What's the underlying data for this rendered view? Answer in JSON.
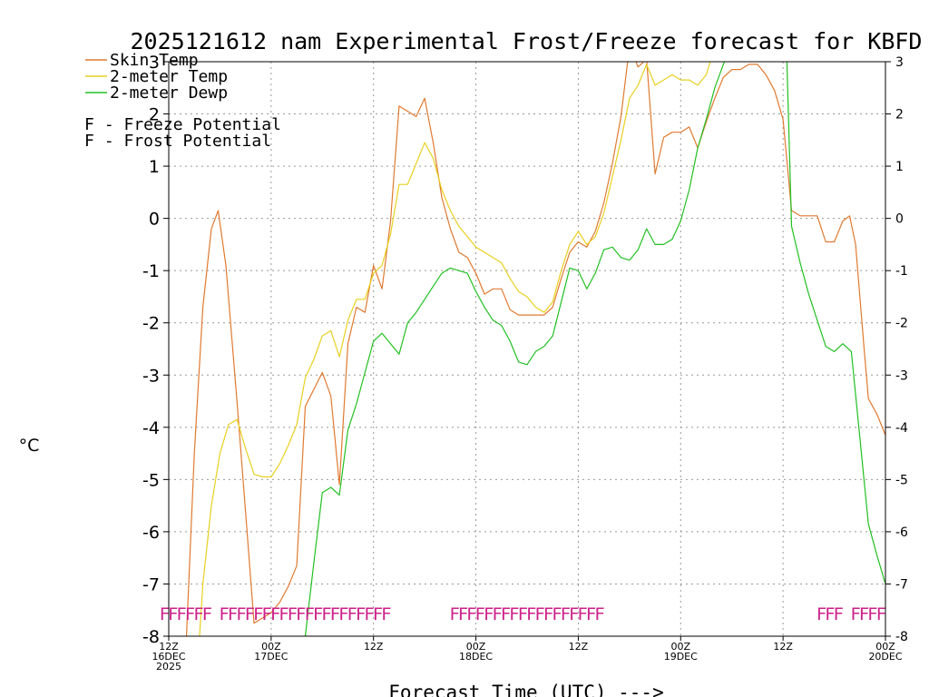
{
  "chart_data": {
    "type": "line",
    "title": "2025121612 nam Experimental Frost/Freeze forecast for KBFD",
    "ylabel": "°C",
    "xlabel": "Forecast Time (UTC) --->",
    "ylim": [
      -8,
      3
    ],
    "xlim": [
      0,
      84
    ],
    "yticks": [
      -8,
      -7,
      -6,
      -5,
      -4,
      -3,
      -2,
      -1,
      0,
      1,
      2,
      3
    ],
    "xticks": [
      {
        "x": 0,
        "lines": [
          "12Z",
          "16DEC",
          "2025"
        ]
      },
      {
        "x": 12,
        "lines": [
          "00Z",
          "17DEC"
        ]
      },
      {
        "x": 24,
        "lines": [
          "12Z"
        ]
      },
      {
        "x": 36,
        "lines": [
          "00Z",
          "18DEC"
        ]
      },
      {
        "x": 48,
        "lines": [
          "12Z"
        ]
      },
      {
        "x": 60,
        "lines": [
          "00Z",
          "19DEC"
        ]
      },
      {
        "x": 72,
        "lines": [
          "12Z"
        ]
      },
      {
        "x": 84,
        "lines": [
          "00Z",
          "20DEC"
        ]
      }
    ],
    "grid": true,
    "series": [
      {
        "name": "Skin Temp",
        "color": "#e07a30",
        "points": [
          [
            2,
            -8.3
          ],
          [
            3,
            -4.5
          ],
          [
            4,
            -1.7
          ],
          [
            5,
            -0.2
          ],
          [
            5.8,
            0.15
          ],
          [
            6.7,
            -0.9
          ],
          [
            8,
            -3.5
          ],
          [
            9,
            -5.6
          ],
          [
            10,
            -7.75
          ],
          [
            11,
            -7.65
          ],
          [
            12,
            -7.55
          ],
          [
            13,
            -7.35
          ],
          [
            14,
            -7.05
          ],
          [
            15,
            -6.65
          ],
          [
            16,
            -3.6
          ],
          [
            18,
            -2.95
          ],
          [
            19,
            -3.4
          ],
          [
            20,
            -5.1
          ],
          [
            21,
            -2.4
          ],
          [
            22,
            -1.7
          ],
          [
            23,
            -1.8
          ],
          [
            24,
            -0.9
          ],
          [
            25,
            -1.35
          ],
          [
            26,
            -0.05
          ],
          [
            27,
            2.15
          ],
          [
            29,
            1.95
          ],
          [
            30,
            2.3
          ],
          [
            31,
            1.45
          ],
          [
            32,
            0.4
          ],
          [
            33,
            -0.2
          ],
          [
            34,
            -0.65
          ],
          [
            35,
            -0.75
          ],
          [
            36,
            -1.05
          ],
          [
            37,
            -1.45
          ],
          [
            38,
            -1.35
          ],
          [
            39,
            -1.35
          ],
          [
            40,
            -1.75
          ],
          [
            41,
            -1.85
          ],
          [
            42,
            -1.85
          ],
          [
            43,
            -1.85
          ],
          [
            44,
            -1.85
          ],
          [
            45,
            -1.7
          ],
          [
            46,
            -1.15
          ],
          [
            47,
            -0.65
          ],
          [
            48,
            -0.45
          ],
          [
            49,
            -0.55
          ],
          [
            50,
            -0.25
          ],
          [
            51,
            0.3
          ],
          [
            52,
            1.05
          ],
          [
            53,
            1.95
          ],
          [
            54,
            3.3
          ],
          [
            55,
            2.9
          ],
          [
            56,
            3.05
          ],
          [
            57,
            0.85
          ],
          [
            58,
            1.55
          ],
          [
            59,
            1.65
          ],
          [
            60,
            1.65
          ],
          [
            61,
            1.75
          ],
          [
            62,
            1.35
          ],
          [
            63,
            1.85
          ],
          [
            64,
            2.3
          ],
          [
            65,
            2.7
          ],
          [
            66,
            2.85
          ],
          [
            67,
            2.85
          ],
          [
            68,
            2.95
          ],
          [
            69,
            2.95
          ],
          [
            70,
            2.75
          ],
          [
            71,
            2.45
          ],
          [
            72,
            1.9
          ],
          [
            73,
            0.15
          ],
          [
            74,
            0.05
          ],
          [
            75,
            0.05
          ],
          [
            76,
            0.05
          ],
          [
            77,
            -0.45
          ],
          [
            78,
            -0.45
          ],
          [
            79,
            -0.05
          ],
          [
            79.8,
            0.05
          ],
          [
            80.5,
            -0.5
          ],
          [
            81.5,
            -2.5
          ],
          [
            82,
            -3.45
          ],
          [
            83,
            -3.75
          ],
          [
            84,
            -4.15
          ]
        ]
      },
      {
        "name": "2-meter Temp",
        "color": "#e8d020",
        "points": [
          [
            3.5,
            -8.3
          ],
          [
            4,
            -7.0
          ],
          [
            5,
            -5.5
          ],
          [
            6,
            -4.5
          ],
          [
            7,
            -3.95
          ],
          [
            8,
            -3.85
          ],
          [
            9,
            -4.4
          ],
          [
            10,
            -4.9
          ],
          [
            11,
            -4.95
          ],
          [
            12,
            -4.95
          ],
          [
            13,
            -4.7
          ],
          [
            14,
            -4.35
          ],
          [
            15,
            -3.95
          ],
          [
            16,
            -3.05
          ],
          [
            17,
            -2.7
          ],
          [
            18,
            -2.25
          ],
          [
            19,
            -2.15
          ],
          [
            20,
            -2.65
          ],
          [
            21,
            -1.95
          ],
          [
            22,
            -1.55
          ],
          [
            23,
            -1.55
          ],
          [
            24,
            -1.05
          ],
          [
            25,
            -0.9
          ],
          [
            26,
            -0.3
          ],
          [
            27,
            0.65
          ],
          [
            28,
            0.65
          ],
          [
            29,
            1.05
          ],
          [
            30,
            1.45
          ],
          [
            31,
            1.15
          ],
          [
            32,
            0.55
          ],
          [
            33,
            0.15
          ],
          [
            34,
            -0.15
          ],
          [
            35,
            -0.35
          ],
          [
            36,
            -0.55
          ],
          [
            37,
            -0.65
          ],
          [
            38,
            -0.75
          ],
          [
            39,
            -0.85
          ],
          [
            40,
            -1.15
          ],
          [
            41,
            -1.4
          ],
          [
            42,
            -1.5
          ],
          [
            43,
            -1.7
          ],
          [
            44,
            -1.8
          ],
          [
            45,
            -1.6
          ],
          [
            46,
            -1.0
          ],
          [
            47,
            -0.5
          ],
          [
            48,
            -0.25
          ],
          [
            49,
            -0.5
          ],
          [
            50,
            -0.35
          ],
          [
            51,
            0.1
          ],
          [
            52,
            0.8
          ],
          [
            53,
            1.5
          ],
          [
            54,
            2.3
          ],
          [
            55,
            2.55
          ],
          [
            56,
            2.95
          ],
          [
            57,
            2.55
          ],
          [
            58,
            2.65
          ],
          [
            59,
            2.75
          ],
          [
            60,
            2.65
          ],
          [
            61,
            2.65
          ],
          [
            62,
            2.55
          ],
          [
            63,
            2.75
          ],
          [
            64,
            3.3
          ]
        ]
      },
      {
        "name": "2-meter Dewp",
        "color": "#22c022",
        "points": [
          [
            16,
            -8.0
          ],
          [
            17,
            -6.6
          ],
          [
            18,
            -5.25
          ],
          [
            19,
            -5.15
          ],
          [
            20,
            -5.3
          ],
          [
            21,
            -4.05
          ],
          [
            22,
            -3.55
          ],
          [
            23,
            -2.95
          ],
          [
            24,
            -2.35
          ],
          [
            25,
            -2.2
          ],
          [
            26,
            -2.4
          ],
          [
            27,
            -2.6
          ],
          [
            28,
            -2.0
          ],
          [
            29,
            -1.8
          ],
          [
            30,
            -1.55
          ],
          [
            31,
            -1.3
          ],
          [
            32,
            -1.05
          ],
          [
            33,
            -0.95
          ],
          [
            34,
            -1.0
          ],
          [
            35,
            -1.05
          ],
          [
            36,
            -1.4
          ],
          [
            37,
            -1.7
          ],
          [
            38,
            -1.95
          ],
          [
            39,
            -2.05
          ],
          [
            40,
            -2.35
          ],
          [
            41,
            -2.75
          ],
          [
            42,
            -2.8
          ],
          [
            43,
            -2.55
          ],
          [
            44,
            -2.45
          ],
          [
            45,
            -2.25
          ],
          [
            46,
            -1.6
          ],
          [
            47,
            -0.95
          ],
          [
            48,
            -1.0
          ],
          [
            49,
            -1.35
          ],
          [
            50,
            -1.05
          ],
          [
            51,
            -0.6
          ],
          [
            52,
            -0.55
          ],
          [
            53,
            -0.75
          ],
          [
            54,
            -0.8
          ],
          [
            55,
            -0.6
          ],
          [
            56,
            -0.2
          ],
          [
            57,
            -0.5
          ],
          [
            58,
            -0.5
          ],
          [
            59,
            -0.4
          ],
          [
            60,
            -0.05
          ],
          [
            61,
            0.55
          ],
          [
            62,
            1.35
          ],
          [
            63,
            1.9
          ],
          [
            64,
            2.5
          ],
          [
            65,
            2.95
          ],
          [
            66,
            3.3
          ]
        ]
      },
      {
        "name": "2-meter Dewp (cont)",
        "color": "#22c022",
        "points": [
          [
            72.4,
            3.3
          ],
          [
            73,
            -0.15
          ],
          [
            74,
            -0.85
          ],
          [
            75,
            -1.45
          ],
          [
            76,
            -1.95
          ],
          [
            77,
            -2.45
          ],
          [
            78,
            -2.55
          ],
          [
            79,
            -2.4
          ],
          [
            80,
            -2.55
          ],
          [
            81,
            -4.2
          ],
          [
            82,
            -5.85
          ],
          [
            83,
            -6.45
          ],
          [
            84,
            -7.0
          ]
        ]
      }
    ],
    "legend": [
      {
        "label": "Skin Temp",
        "color": "#e07a30"
      },
      {
        "label": "2-meter Temp",
        "color": "#e8d020"
      },
      {
        "label": "2-meter Dewp",
        "color": "#22c022"
      }
    ],
    "potential_legend": [
      {
        "letter": "F",
        "text": " - Freeze Potential",
        "color": "#cc2288"
      },
      {
        "letter": "F",
        "text": " - Frost Potential",
        "color": "#5555dd"
      }
    ],
    "freeze_marks": {
      "glyph": "F",
      "color": "#cc2288",
      "y": -7.55,
      "x": [
        -0.5,
        0.5,
        1.5,
        2.5,
        3.5,
        4.5,
        6.5,
        7.5,
        8.5,
        9.5,
        10.5,
        11.5,
        12.5,
        13.5,
        14.5,
        15.5,
        16.5,
        17.5,
        18.5,
        19.5,
        20.5,
        21.5,
        22.5,
        23.5,
        24.5,
        25.5,
        33.5,
        34.5,
        35.5,
        36.5,
        37.5,
        38.5,
        39.5,
        40.5,
        41.5,
        42.5,
        43.5,
        44.5,
        45.5,
        46.5,
        47.5,
        48.5,
        49.5,
        50.5,
        76.5,
        77.5,
        78.5,
        80.5,
        81.5,
        82.5,
        83.5
      ]
    }
  }
}
